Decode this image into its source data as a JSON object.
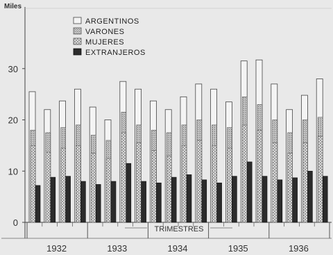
{
  "chart_data": {
    "type": "bar",
    "unit_label": "Miles",
    "xlabel": "TRIMESTRES",
    "ylim": [
      0,
      40
    ],
    "yticks": [
      0,
      10,
      20,
      30
    ],
    "grid": false,
    "legend_position": "top-left",
    "years": [
      "1932",
      "1933",
      "1934",
      "1935",
      "1936"
    ],
    "quarters_per_year": 4,
    "series": [
      {
        "name": "ARGENTINOS",
        "fill": "#f4f4f4",
        "values": [
          25.5,
          22.0,
          23.7,
          26.0,
          22.5,
          20.0,
          27.5,
          26.0,
          23.7,
          22.0,
          24.5,
          27.0,
          26.0,
          23.5,
          31.5,
          31.7,
          27.0,
          22.0,
          24.8,
          28.0
        ]
      },
      {
        "name": "VARONES",
        "fill": "#b5b5b5",
        "values": [
          18.0,
          17.5,
          18.5,
          19.0,
          17.0,
          16.0,
          21.5,
          19.0,
          18.0,
          17.5,
          19.0,
          20.0,
          19.0,
          18.5,
          24.5,
          23.0,
          20.0,
          17.5,
          20.0,
          20.5
        ]
      },
      {
        "name": "MUJERES",
        "fill": "#d6d6d6",
        "values": [
          15.0,
          13.7,
          14.5,
          15.0,
          13.5,
          12.5,
          17.5,
          15.5,
          14.0,
          13.0,
          15.0,
          16.0,
          15.0,
          14.5,
          19.0,
          18.0,
          15.5,
          13.5,
          15.5,
          16.8
        ]
      },
      {
        "name": "EXTRANJEROS",
        "fill": "#2c2c2c",
        "values": [
          7.2,
          8.8,
          9.0,
          8.0,
          7.4,
          8.0,
          11.5,
          8.0,
          7.7,
          8.8,
          9.3,
          8.3,
          7.7,
          9.0,
          11.8,
          9.0,
          8.3,
          8.7,
          10.0,
          9.0
        ]
      }
    ]
  }
}
